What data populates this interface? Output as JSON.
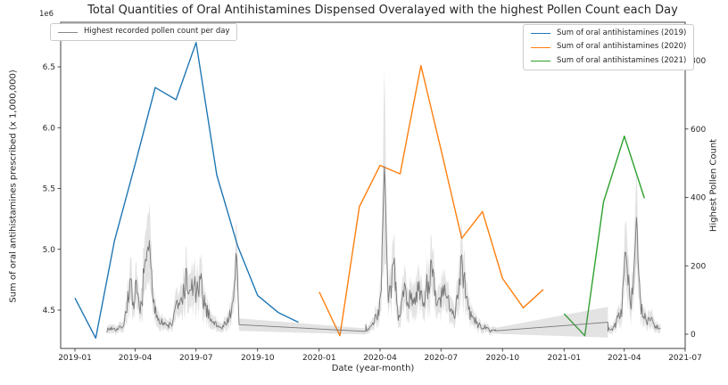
{
  "figure": {
    "title": "Total Quantities of Oral Antihistamines Dispensed Overalayed with the highest Pollen Count each Day",
    "offset_label": "1e6"
  },
  "axes": {
    "x": {
      "label": "Date (year-month)",
      "tick_labels": [
        "2019-01",
        "2019-04",
        "2019-07",
        "2019-10",
        "2020-01",
        "2020-04",
        "2020-07",
        "2020-10",
        "2021-01",
        "2021-04",
        "2021-07"
      ]
    },
    "y_left": {
      "label": "Sum of oral antihistamines prescribed (x 1,000,000)",
      "ticks": [
        4.5,
        5.0,
        5.5,
        6.0,
        6.5
      ],
      "tick_labels": [
        "4.5",
        "5.0",
        "5.5",
        "6.0",
        "6.5"
      ]
    },
    "y_right": {
      "label": "Highest Pollen Count",
      "ticks": [
        0,
        200,
        400,
        600,
        800
      ],
      "tick_labels": [
        "0",
        "200",
        "400",
        "600",
        "800"
      ]
    }
  },
  "legends": {
    "pollen": {
      "label": "Highest recorded pollen count per day",
      "color": "#888888"
    },
    "series": [
      {
        "label": "Sum of oral antihistamines (2019)",
        "color": "#1f77b4"
      },
      {
        "label": "Sum of oral antihistamines (2020)",
        "color": "#ff7f0e"
      },
      {
        "label": "Sum of oral antihistamines (2021)",
        "color": "#2ca02c"
      }
    ]
  },
  "chart_data": {
    "type": "line",
    "title": "Total Quantities of Oral Antihistamines Dispensed Overalayed with the highest Pollen Count each Day",
    "xlabel": "Date (year-month)",
    "ylabel_left": "Sum of oral antihistamines prescribed (x 1,000,000)",
    "ylabel_right": "Highest Pollen Count",
    "y_left_unit": "1e6",
    "y_left_lim": [
      4.19,
      6.87
    ],
    "y_right_lim": [
      -42,
      912
    ],
    "x_lim": [
      "2018-12-10",
      "2021-07-01"
    ],
    "grid": false,
    "legend_positions": [
      "upper-left",
      "upper-right"
    ],
    "series": [
      {
        "name": "Sum of oral antihistamines (2019)",
        "axis": "left",
        "color": "#1f77b4",
        "months": [
          "2019-01",
          "2019-02",
          "2019-03",
          "2019-04",
          "2019-05",
          "2019-06",
          "2019-07",
          "2019-08",
          "2019-09",
          "2019-10",
          "2019-11",
          "2019-12"
        ],
        "values": [
          4.6,
          4.27,
          5.07,
          5.7,
          6.33,
          6.23,
          6.7,
          5.61,
          5.03,
          4.62,
          4.48,
          4.4
        ]
      },
      {
        "name": "Sum of oral antihistamines (2020)",
        "axis": "left",
        "color": "#ff7f0e",
        "months": [
          "2020-01",
          "2020-02",
          "2020-03",
          "2020-04",
          "2020-05",
          "2020-06",
          "2020-07",
          "2020-08",
          "2020-09",
          "2020-10",
          "2020-11",
          "2020-12"
        ],
        "values": [
          4.65,
          4.29,
          5.35,
          5.69,
          5.62,
          6.51,
          5.82,
          5.09,
          5.31,
          4.76,
          4.52,
          4.67
        ]
      },
      {
        "name": "Sum of oral antihistamines (2021)",
        "axis": "left",
        "color": "#2ca02c",
        "months": [
          "2021-01",
          "2021-02",
          "2021-03",
          "2021-04",
          "2021-05"
        ],
        "values": [
          4.47,
          4.29,
          5.39,
          5.93,
          5.42
        ]
      }
    ],
    "pollen": {
      "name": "Highest recorded pollen count per day",
      "axis": "right",
      "color": "#787878",
      "band_color": "rgba(128,128,128,0.22)",
      "representation": "noisy daily line with confidence band; anchors are [months-since-2019-01, pollen-count]",
      "seasons": [
        [
          1.57,
          8.07
        ],
        [
          14.3,
          20.7
        ],
        [
          26.2,
          28.8
        ]
      ],
      "anchors": [
        [
          1.57,
          12
        ],
        [
          1.8,
          18
        ],
        [
          2.1,
          14
        ],
        [
          2.4,
          28
        ],
        [
          2.76,
          160
        ],
        [
          2.9,
          55
        ],
        [
          3.0,
          140
        ],
        [
          3.2,
          60
        ],
        [
          3.45,
          200
        ],
        [
          3.68,
          280
        ],
        [
          3.82,
          90
        ],
        [
          4.0,
          60
        ],
        [
          4.2,
          40
        ],
        [
          4.5,
          24
        ],
        [
          4.8,
          30
        ],
        [
          4.95,
          95
        ],
        [
          5.1,
          70
        ],
        [
          5.3,
          118
        ],
        [
          5.5,
          160
        ],
        [
          5.65,
          105
        ],
        [
          5.8,
          148
        ],
        [
          6.0,
          118
        ],
        [
          6.2,
          140
        ],
        [
          6.4,
          78
        ],
        [
          6.6,
          58
        ],
        [
          6.8,
          34
        ],
        [
          7.0,
          26
        ],
        [
          7.2,
          18
        ],
        [
          7.5,
          40
        ],
        [
          7.8,
          85
        ],
        [
          7.94,
          260
        ],
        [
          8.07,
          28
        ],
        [
          14.3,
          8
        ],
        [
          14.6,
          24
        ],
        [
          14.9,
          60
        ],
        [
          15.05,
          120
        ],
        [
          15.2,
          520
        ],
        [
          15.4,
          85
        ],
        [
          15.7,
          190
        ],
        [
          15.9,
          55
        ],
        [
          16.2,
          128
        ],
        [
          16.5,
          95
        ],
        [
          16.8,
          135
        ],
        [
          17.1,
          88
        ],
        [
          17.5,
          190
        ],
        [
          17.8,
          78
        ],
        [
          18.1,
          120
        ],
        [
          18.4,
          92
        ],
        [
          18.7,
          58
        ],
        [
          19.0,
          230
        ],
        [
          19.3,
          78
        ],
        [
          19.6,
          42
        ],
        [
          19.9,
          24
        ],
        [
          20.3,
          14
        ],
        [
          20.7,
          10
        ],
        [
          26.2,
          12
        ],
        [
          26.5,
          20
        ],
        [
          26.9,
          80
        ],
        [
          27.1,
          250
        ],
        [
          27.3,
          88
        ],
        [
          27.45,
          148
        ],
        [
          27.6,
          352
        ],
        [
          27.75,
          115
        ],
        [
          27.9,
          58
        ],
        [
          28.1,
          38
        ],
        [
          28.3,
          52
        ],
        [
          28.55,
          22
        ],
        [
          28.8,
          16
        ]
      ],
      "gaps": [
        {
          "from": 8.07,
          "to": 14.3,
          "v_from": 28,
          "v_to": 8,
          "half_from": 18,
          "half_to": 9
        },
        {
          "from": 20.7,
          "to": 26.2,
          "v_from": 10,
          "v_to": 35,
          "half_from": 9,
          "half_to": 45
        }
      ]
    }
  }
}
